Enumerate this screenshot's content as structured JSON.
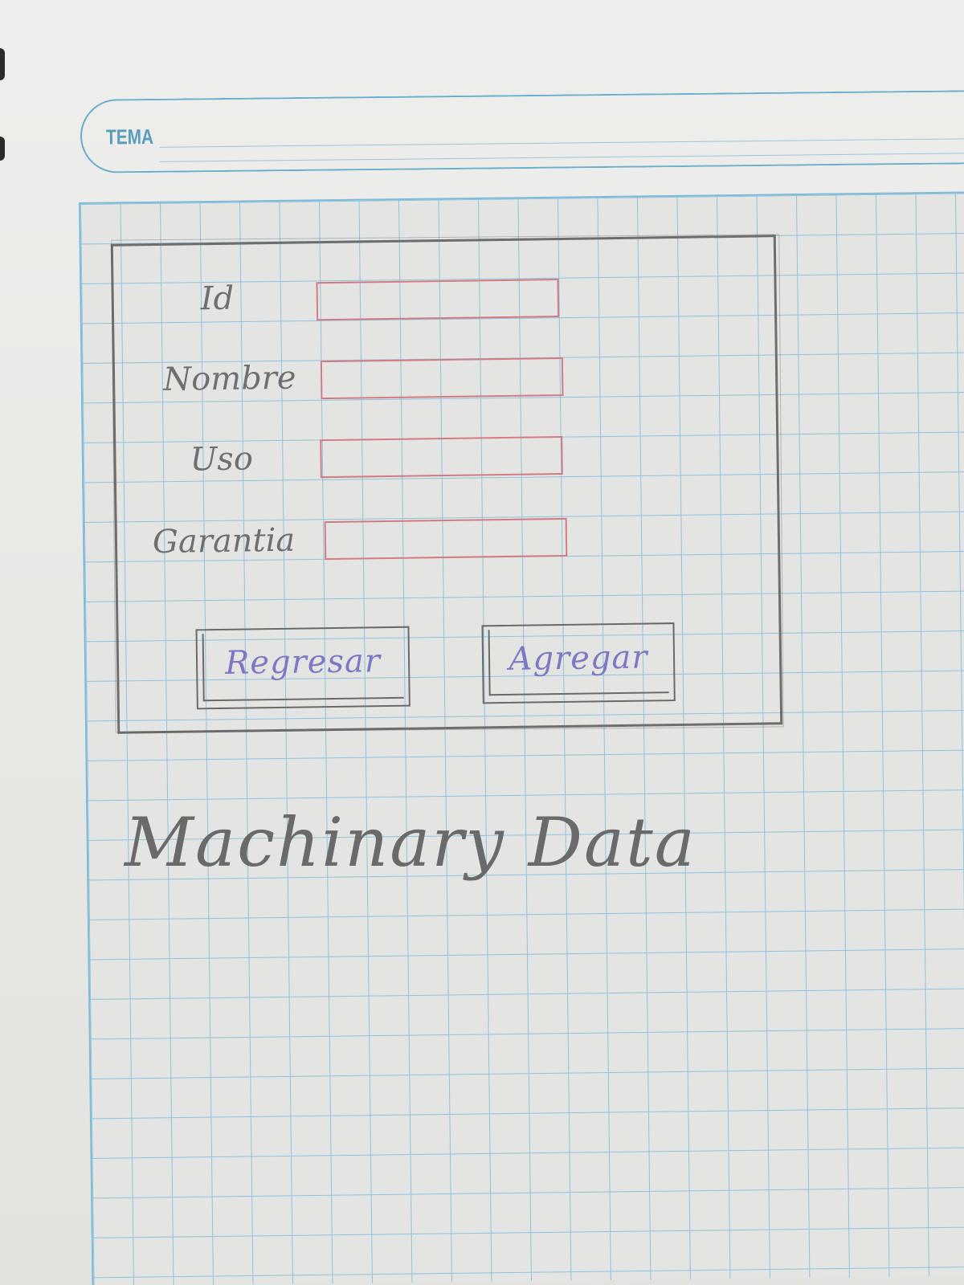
{
  "header": {
    "tema_label": "TEMA"
  },
  "form": {
    "fields": [
      {
        "label": "Id",
        "value": "",
        "placeholder": ""
      },
      {
        "label": "Nombre",
        "value": "",
        "placeholder": ""
      },
      {
        "label": "Uso",
        "value": "",
        "placeholder": ""
      },
      {
        "label": "Garantia",
        "value": "",
        "placeholder": ""
      }
    ],
    "buttons": {
      "back_label": "Regresar",
      "add_label": "Agregar"
    }
  },
  "caption": {
    "text": "Machinary Data"
  },
  "colors": {
    "grid_line": "#8cc3de",
    "field_border": "#d47b82",
    "button_text": "#7d78c4",
    "pencil": "#6e6e6e",
    "header_accent": "#6aaecb"
  }
}
